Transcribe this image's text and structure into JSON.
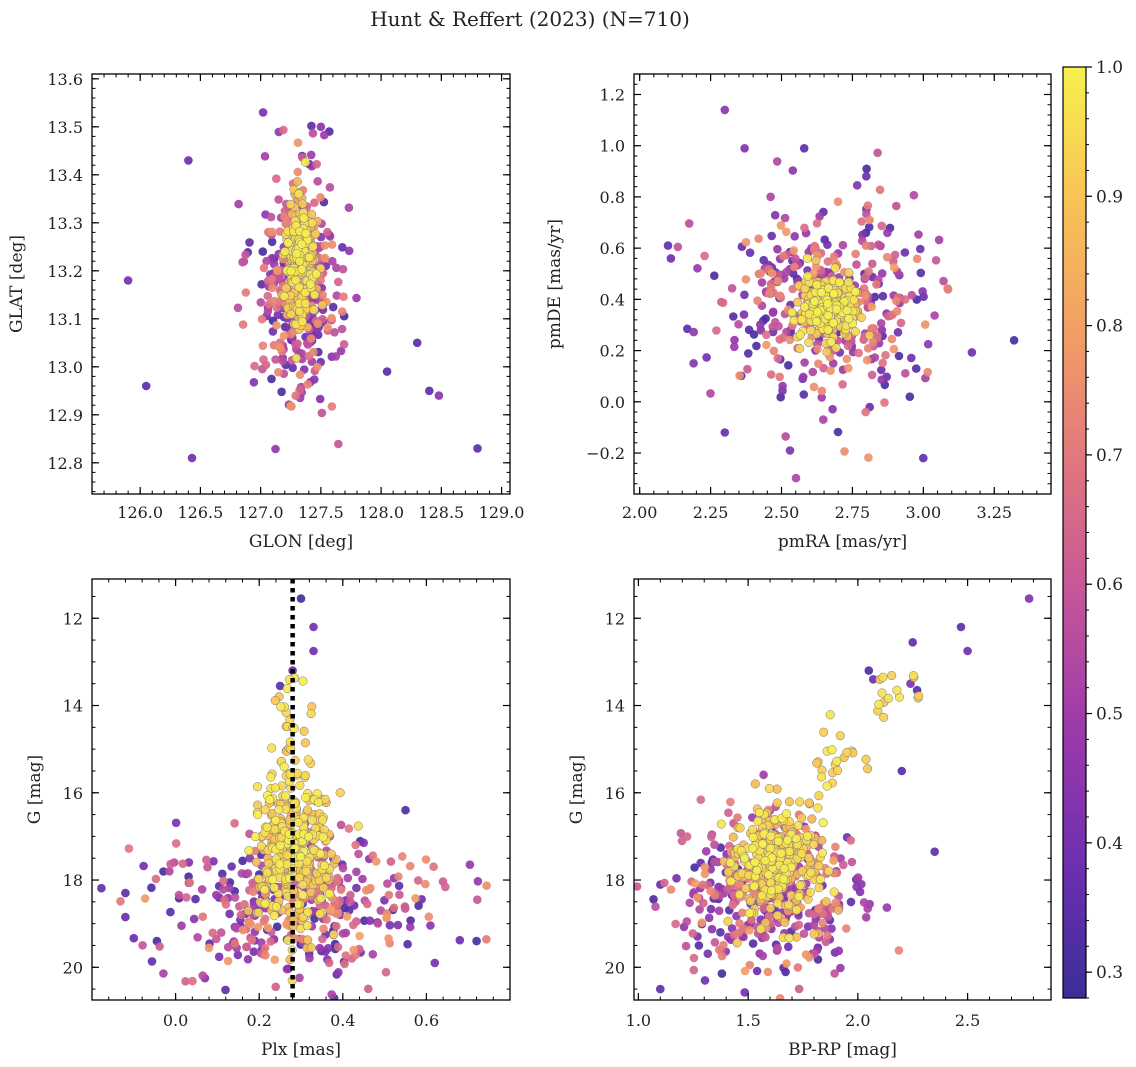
{
  "figure_title": "Hunt & Reffert (2023) (N=710)",
  "colorbar": {
    "min": 0.28,
    "max": 1.0,
    "ticks": [
      0.3,
      0.4,
      0.5,
      0.6,
      0.7,
      0.8,
      0.9,
      1.0
    ],
    "tick_labels": [
      "0.3",
      "0.4",
      "0.5",
      "0.6",
      "0.7",
      "0.8",
      "0.9",
      "1.0"
    ],
    "colormap": "plasma",
    "colors": [
      "#3b2e98",
      "#6c2fb0",
      "#9c3aab",
      "#c4559a",
      "#e0757f",
      "#f29d66",
      "#f8c455",
      "#f7f04e"
    ]
  },
  "chart_data": [
    {
      "id": "sky",
      "type": "scatter",
      "xlabel": "GLON [deg]",
      "ylabel": "GLAT [deg]",
      "xlim": [
        125.6,
        129.07
      ],
      "ylim": [
        12.735,
        13.61
      ],
      "xticks": [
        126.0,
        126.5,
        127.0,
        127.5,
        128.0,
        128.5,
        129.0
      ],
      "xtick_labels": [
        "126.0",
        "126.5",
        "127.0",
        "127.5",
        "128.0",
        "128.5",
        "129.0"
      ],
      "yticks": [
        12.8,
        12.9,
        13.0,
        13.1,
        13.2,
        13.3,
        13.4,
        13.5,
        13.6
      ],
      "ytick_labels": [
        "12.8",
        "12.9",
        "13.0",
        "13.1",
        "13.2",
        "13.3",
        "13.4",
        "13.5",
        "13.6"
      ],
      "yinverted": false,
      "n_points": 710,
      "distribution": {
        "core": {
          "center": [
            127.33,
            13.22
          ],
          "sigma": [
            0.06,
            0.06
          ],
          "prob": [
            0.82,
            1.0
          ]
        },
        "halo": {
          "center": [
            127.32,
            13.16
          ],
          "sigma": [
            0.17,
            0.11
          ],
          "prob": [
            0.3,
            0.78
          ]
        }
      },
      "notable_points": [
        [
          125.9,
          13.18
        ],
        [
          126.05,
          12.96
        ],
        [
          126.4,
          13.43
        ],
        [
          126.43,
          12.81
        ],
        [
          127.02,
          13.53
        ],
        [
          127.5,
          13.5
        ],
        [
          127.57,
          13.49
        ],
        [
          128.05,
          12.99
        ],
        [
          128.3,
          13.05
        ],
        [
          128.4,
          12.95
        ],
        [
          128.48,
          12.94
        ],
        [
          128.8,
          12.83
        ]
      ],
      "reference_line": null
    },
    {
      "id": "pm",
      "type": "scatter",
      "xlabel": "pmRA [mas/yr]",
      "ylabel": "pmDE [mas/yr]",
      "xlim": [
        1.98,
        3.45
      ],
      "ylim": [
        -0.36,
        1.28
      ],
      "xticks": [
        2.0,
        2.25,
        2.5,
        2.75,
        3.0,
        3.25
      ],
      "xtick_labels": [
        "2.00",
        "2.25",
        "2.50",
        "2.75",
        "3.00",
        "3.25"
      ],
      "yticks": [
        -0.2,
        0.0,
        0.2,
        0.4,
        0.6,
        0.8,
        1.0,
        1.2
      ],
      "ytick_labels": [
        "−0.2",
        "0.0",
        "0.2",
        "0.4",
        "0.6",
        "0.8",
        "1.0",
        "1.2"
      ],
      "yinverted": false,
      "n_points": 710,
      "distribution": {
        "core": {
          "center": [
            2.67,
            0.37
          ],
          "sigma": [
            0.05,
            0.06
          ],
          "prob": [
            0.85,
            1.0
          ]
        },
        "halo": {
          "center": [
            2.66,
            0.37
          ],
          "sigma": [
            0.19,
            0.2
          ],
          "prob": [
            0.3,
            0.8
          ]
        }
      },
      "notable_points": [
        [
          2.3,
          1.14
        ],
        [
          2.37,
          0.99
        ],
        [
          2.58,
          0.99
        ],
        [
          2.8,
          0.91
        ],
        [
          2.3,
          -0.12
        ],
        [
          2.53,
          -0.19
        ],
        [
          3.0,
          -0.22
        ],
        [
          3.32,
          0.24
        ],
        [
          2.1,
          0.61
        ],
        [
          2.11,
          0.56
        ]
      ],
      "reference_line": null
    },
    {
      "id": "plx",
      "type": "scatter",
      "xlabel": "Plx [mas]",
      "ylabel": "G [mag]",
      "xlim": [
        -0.2,
        0.8
      ],
      "ylim": [
        20.75,
        11.1
      ],
      "xticks": [
        0.0,
        0.2,
        0.4,
        0.6
      ],
      "xtick_labels": [
        "0.0",
        "0.2",
        "0.4",
        "0.6"
      ],
      "yticks": [
        12,
        14,
        16,
        18,
        20
      ],
      "ytick_labels": [
        "12",
        "14",
        "16",
        "18",
        "20"
      ],
      "yinverted": true,
      "n_points": 710,
      "distribution": {
        "core": {
          "center": [
            0.28,
            17.4
          ],
          "sigma": [
            0.05,
            0.85
          ],
          "prob": [
            0.85,
            1.0
          ]
        },
        "halo": {
          "center": [
            0.28,
            18.6
          ],
          "sigma": [
            0.16,
            0.8
          ],
          "prob": [
            0.3,
            0.8
          ]
        }
      },
      "notable_points": [
        [
          0.3,
          11.55
        ],
        [
          0.33,
          12.2
        ],
        [
          0.33,
          12.75
        ],
        [
          0.28,
          13.2
        ],
        [
          0.25,
          13.55
        ],
        [
          -0.12,
          18.3
        ],
        [
          -0.12,
          18.85
        ],
        [
          0.72,
          19.4
        ],
        [
          0.68,
          19.38
        ],
        [
          0.62,
          19.9
        ],
        [
          0.55,
          16.4
        ],
        [
          0.07,
          20.25
        ]
      ],
      "reference_line": {
        "x": 0.28,
        "style": "dotted",
        "color": "#000000"
      }
    },
    {
      "id": "cmd",
      "type": "scatter",
      "xlabel": "BP-RP [mag]",
      "ylabel": "G [mag]",
      "xlim": [
        0.98,
        2.88
      ],
      "ylim": [
        20.75,
        11.1
      ],
      "xticks": [
        1.0,
        1.5,
        2.0,
        2.5
      ],
      "xtick_labels": [
        "1.0",
        "1.5",
        "2.0",
        "2.5"
      ],
      "yticks": [
        12,
        14,
        16,
        18,
        20
      ],
      "ytick_labels": [
        "12",
        "14",
        "16",
        "18",
        "20"
      ],
      "yinverted": true,
      "n_points": 710,
      "distribution": {
        "core": {
          "center": [
            1.62,
            17.6
          ],
          "sigma": [
            0.1,
            0.6
          ],
          "prob": [
            0.85,
            1.0
          ]
        },
        "halo": {
          "center": [
            1.6,
            18.4
          ],
          "sigma": [
            0.2,
            0.85
          ],
          "prob": [
            0.3,
            0.8
          ]
        }
      },
      "notable_points": [
        [
          2.78,
          11.55
        ],
        [
          2.47,
          12.2
        ],
        [
          2.25,
          12.55
        ],
        [
          2.5,
          12.75
        ],
        [
          2.27,
          13.65
        ],
        [
          2.24,
          13.5
        ],
        [
          2.05,
          13.2
        ],
        [
          2.07,
          13.4
        ],
        [
          1.1,
          20.5
        ],
        [
          2.35,
          17.35
        ],
        [
          2.2,
          15.5
        ]
      ],
      "reference_line": null
    }
  ]
}
